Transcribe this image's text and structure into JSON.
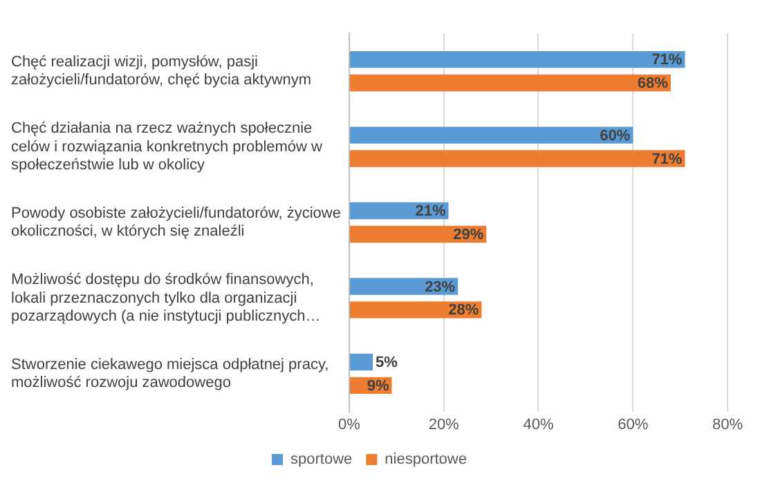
{
  "chart_data": {
    "type": "bar",
    "orientation": "horizontal",
    "categories": [
      "Chęć realizacji wizji, pomysłów, pasji założycieli/fundatorów, chęć bycia aktywnym",
      "Chęć działania na rzecz ważnych społecznie celów i rozwiązania konkretnych problemów w społeczeństwie lub w okolicy",
      "Powody osobiste założycieli/fundatorów, życiowe okoliczności, w których się znaleźli",
      "Możliwość dostępu do środków finansowych, lokali przeznaczonych tylko dla organizacji pozarządowych (a nie instytucji publicznych…",
      "Stworzenie ciekawego miejsca odpłatnej pracy, możliwość rozwoju zawodowego"
    ],
    "series": [
      {
        "name": "sportowe",
        "color": "#5b9bd5",
        "values": [
          71,
          60,
          21,
          23,
          5
        ],
        "value_labels": [
          "71%",
          "60%",
          "21%",
          "23%",
          "5%"
        ]
      },
      {
        "name": "niesportowe",
        "color": "#ed7d31",
        "values": [
          68,
          71,
          29,
          28,
          9
        ],
        "value_labels": [
          "68%",
          "71%",
          "29%",
          "28%",
          "9%"
        ]
      }
    ],
    "xlim": [
      0,
      80
    ],
    "xticks": [
      {
        "value": 0,
        "label": "0%"
      },
      {
        "value": 20,
        "label": "20%"
      },
      {
        "value": 40,
        "label": "40%"
      },
      {
        "value": 60,
        "label": "60%"
      },
      {
        "value": 80,
        "label": "80%"
      }
    ],
    "grid": "x",
    "legend": "bottom"
  }
}
